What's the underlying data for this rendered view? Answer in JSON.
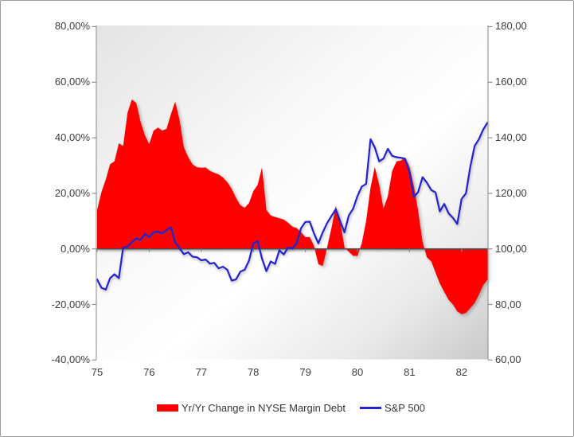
{
  "chart_data": {
    "type": "combo",
    "title": "",
    "x_axis": {
      "labels": [
        "75",
        "76",
        "77",
        "78",
        "79",
        "80",
        "81",
        "82"
      ],
      "start_year": 75,
      "points_per_year": 12
    },
    "y_axis_left": {
      "labels": [
        "80,00%",
        "60,00%",
        "40,00%",
        "20,00%",
        "0,00%",
        "-20,00%",
        "-40,00%"
      ],
      "values": [
        80,
        60,
        40,
        20,
        0,
        -20,
        -40
      ],
      "min": -40,
      "max": 80,
      "unit": "%"
    },
    "y_axis_right": {
      "labels": [
        "180,00",
        "160,00",
        "140,00",
        "120,00",
        "100,00",
        "80,00",
        "60,00"
      ],
      "values": [
        180,
        160,
        140,
        120,
        100,
        80,
        60
      ],
      "min": 60,
      "max": 180
    },
    "grid": "off",
    "legend_position": "bottom",
    "series": [
      {
        "name": "Yr/Yr Change in NYSE Margin Debt",
        "type": "area",
        "axis": "left",
        "color": "#fe0000",
        "values": [
          14,
          20.5,
          25,
          30.5,
          31.5,
          38,
          37,
          49,
          53.8,
          52.5,
          45.8,
          41,
          37.7,
          42.5,
          43.7,
          42.6,
          43.2,
          48.5,
          53,
          46.3,
          36.5,
          33,
          30.4,
          29.4,
          29.2,
          29.3,
          28.1,
          27.4,
          26.8,
          25.7,
          24,
          21.6,
          18.4,
          15.7,
          14.8,
          16.5,
          20.8,
          23,
          29.3,
          14,
          12,
          11.5,
          11,
          10.6,
          9.4,
          8,
          7.5,
          6,
          4.2,
          4.3,
          1,
          -5.5,
          -6.2,
          0.5,
          7.5,
          15.5,
          10,
          0.5,
          -1,
          -2.5,
          -2.5,
          2,
          10,
          22,
          29.5,
          23,
          14.5,
          19,
          28,
          31.5,
          31.8,
          32.9,
          29.5,
          22.5,
          13.5,
          2.5,
          -3,
          -4.5,
          -8.5,
          -12.5,
          -15.5,
          -18.3,
          -20,
          -22.5,
          -23.5,
          -23,
          -21.3,
          -19.5,
          -16.5,
          -13,
          -11
        ]
      },
      {
        "name": "S&P 500",
        "type": "line",
        "axis": "right",
        "color": "#2222cf",
        "values": [
          89,
          86,
          85.4,
          89.5,
          90.9,
          89.5,
          100.5,
          100.8,
          102.4,
          103.8,
          103.2,
          105.4,
          104.3,
          106,
          106.2,
          105.6,
          106.8,
          107.8,
          102.3,
          100.2,
          98.1,
          98.8,
          97.2,
          97,
          95.9,
          96.2,
          94.7,
          95,
          93,
          93.6,
          92.5,
          88.6,
          89,
          91.8,
          92.5,
          95.8,
          102,
          102.8,
          96.5,
          92,
          95.5,
          94.6,
          99.5,
          98,
          100.5,
          100.2,
          102,
          107.5,
          109.7,
          109.8,
          105.5,
          102,
          106,
          109.3,
          111.8,
          114.3,
          110,
          106,
          112,
          114.5,
          119,
          122.4,
          123.4,
          139.5,
          136.5,
          131.5,
          132.5,
          136,
          133.5,
          133,
          132.8,
          132.4,
          127.5,
          118.7,
          120.5,
          125.8,
          123.8,
          121.2,
          120.3,
          113.5,
          116.2,
          112.8,
          111.2,
          109,
          118,
          120,
          129.5,
          137,
          139.5,
          143,
          145.5
        ]
      }
    ]
  },
  "legend": {
    "area_label": "Yr/Yr Change in NYSE Margin Debt",
    "line_label": "S&P 500"
  },
  "colors": {
    "area_series": "#fe0000",
    "line_series": "#2222cf",
    "axis_line": "#9a9a9a",
    "tick": "#8a8a8a",
    "zero_line": "#4a4a4a",
    "label_text": "#3d3d3d",
    "plot_gradient_start": "#e4e4e4",
    "plot_gradient_mid": "#ffffff",
    "plot_gradient_end": "#c9c9c9",
    "chart_border": "#9b9b9b"
  }
}
